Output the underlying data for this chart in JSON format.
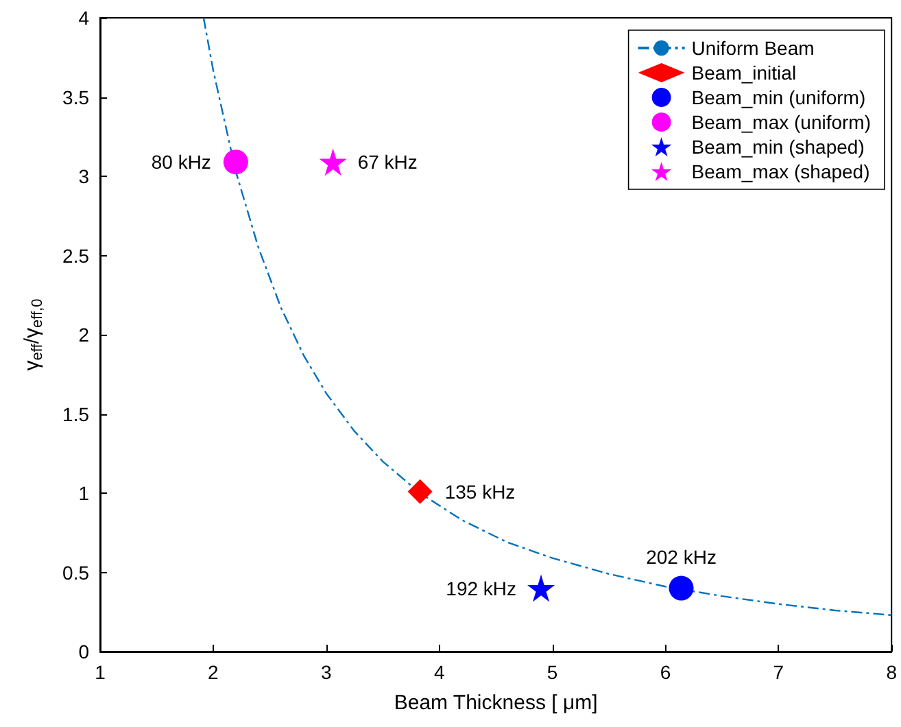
{
  "chart_data": {
    "type": "scatter",
    "xlabel": "Beam Thickness [ μm]",
    "ylabel": "γ$_{eff}$/γ$_{eff,0}$",
    "xlim": [
      1,
      8
    ],
    "ylim": [
      0,
      4
    ],
    "xticks": [
      1,
      2,
      3,
      4,
      5,
      6,
      7,
      8
    ],
    "yticks": [
      0,
      0.5,
      1,
      1.5,
      2,
      2.5,
      3,
      3.5,
      4
    ],
    "grid": false,
    "legend": "top right",
    "series": [
      {
        "name": "Uniform Beam",
        "type": "line",
        "color": "#0072bd",
        "line_style": "dashed",
        "marker": "none",
        "x": [
          1.915,
          2,
          2.2,
          2.4,
          2.6,
          2.8,
          3,
          3.25,
          3.5,
          3.83,
          4.2,
          4.6,
          5,
          5.5,
          6,
          6.5,
          7,
          7.5,
          8
        ],
        "values": [
          4,
          3.67,
          3.03,
          2.55,
          2.17,
          1.87,
          1.63,
          1.39,
          1.2,
          1.0,
          0.83,
          0.69,
          0.59,
          0.49,
          0.41,
          0.35,
          0.3,
          0.26,
          0.23
        ]
      },
      {
        "name": "Beam_initial",
        "color": "#ff0000",
        "marker": "diamond",
        "x": [
          3.83
        ],
        "values": [
          1.01
        ]
      },
      {
        "name": "Beam_min (uniform)",
        "color": "#0000ff",
        "marker": "circle",
        "x": [
          6.14
        ],
        "values": [
          0.4
        ]
      },
      {
        "name": "Beam_max (uniform)",
        "color": "#ff00ff",
        "marker": "circle",
        "x": [
          2.2
        ],
        "values": [
          3.09
        ]
      },
      {
        "name": "Beam_min (shaped)",
        "color": "#0000ff",
        "marker": "star",
        "x": [
          4.9
        ],
        "values": [
          0.4
        ]
      },
      {
        "name": "Beam_max (shaped)",
        "color": "#ff00ff",
        "marker": "star",
        "x": [
          3.06
        ],
        "values": [
          3.09
        ]
      }
    ],
    "annotations": [
      {
        "text": "80 kHz",
        "x": 2.2,
        "y": 3.09
      },
      {
        "text": "67 kHz",
        "x": 3.06,
        "y": 3.09
      },
      {
        "text": "135 kHz",
        "x": 3.83,
        "y": 1.01
      },
      {
        "text": "202 kHz",
        "x": 6.14,
        "y": 0.4
      },
      {
        "text": "192 kHz",
        "x": 4.9,
        "y": 0.4
      }
    ]
  }
}
